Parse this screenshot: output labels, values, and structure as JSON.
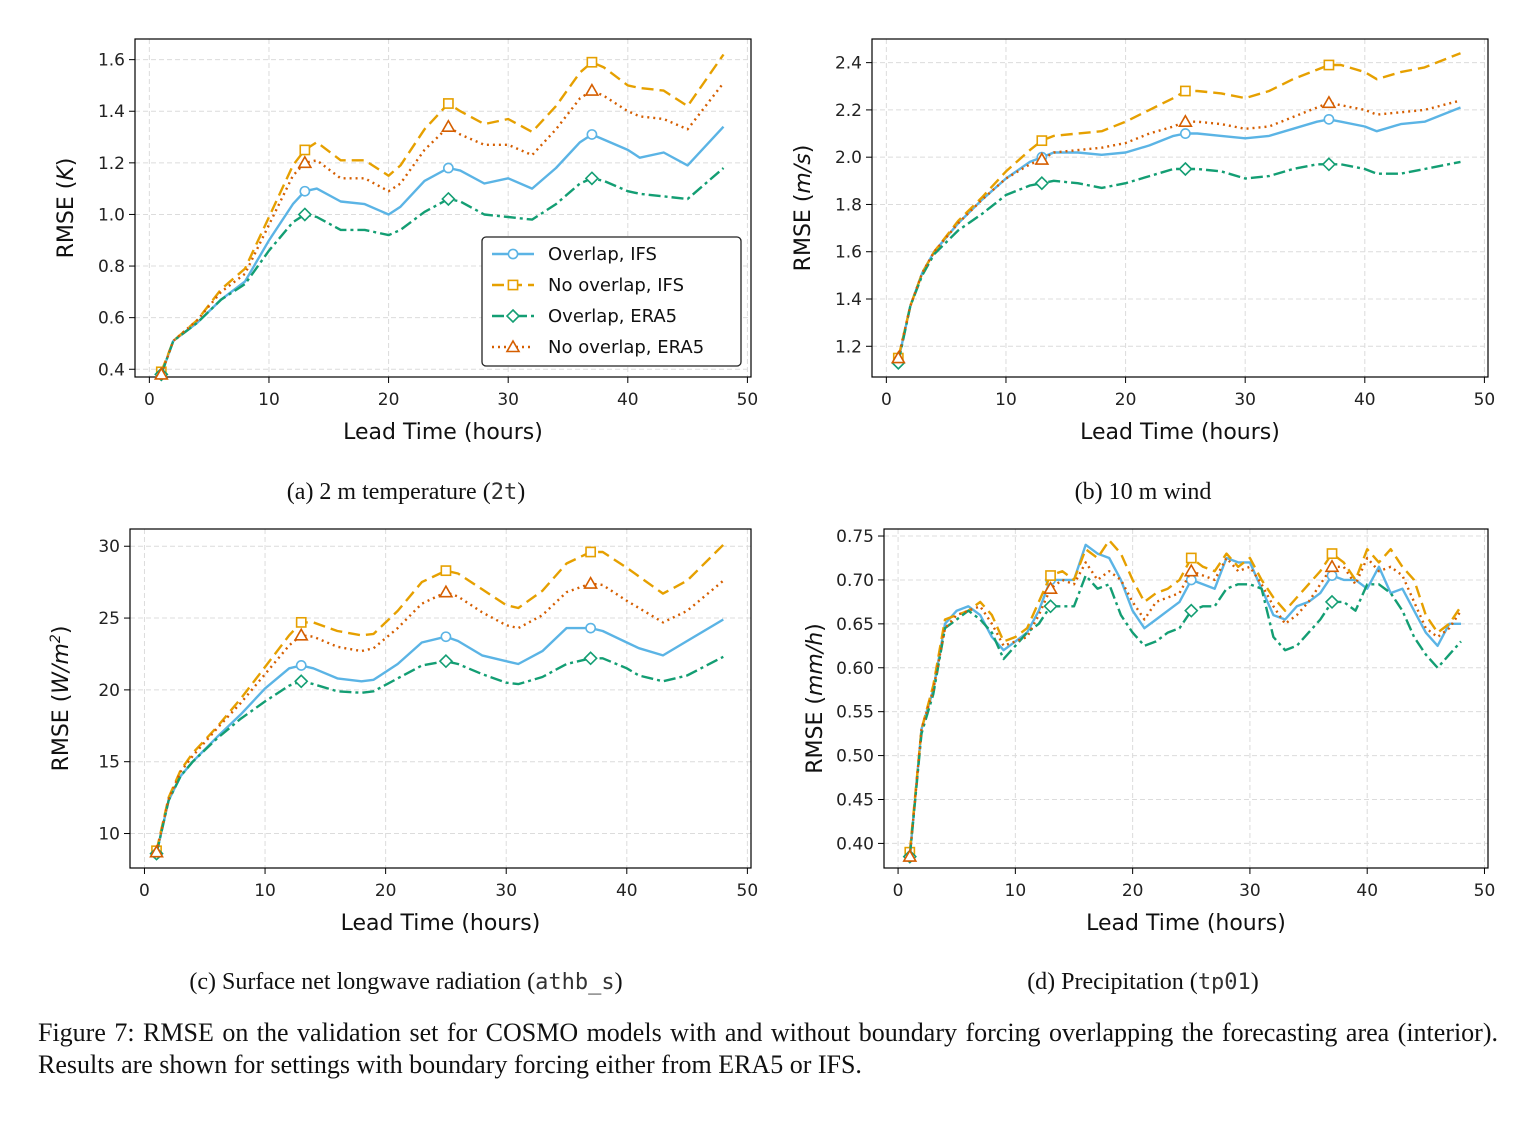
{
  "figure_caption": "Figure 7: RMSE on the validation set for COSMO models with and without boundary forcing overlapping the forecasting area (interior). Results are shown for settings with boundary forcing either from ERA5 or IFS.",
  "series_styles": [
    {
      "name": "Overlap, IFS",
      "color": "#5bb4e5",
      "dash": "",
      "marker": "circle"
    },
    {
      "name": "No overlap, IFS",
      "color": "#e6a000",
      "dash": "12,6",
      "marker": "square"
    },
    {
      "name": "Overlap, ERA5",
      "color": "#139e73",
      "dash": "12,4,3,4",
      "marker": "diamond"
    },
    {
      "name": "No overlap, ERA5",
      "color": "#d55e00",
      "dash": "2,4",
      "marker": "triangle"
    }
  ],
  "marker_x": [
    1,
    13,
    25,
    37
  ],
  "chart_data": [
    {
      "type": "line",
      "caption": {
        "prefix": "(a) 2 m temperature (",
        "code": "2t",
        "suffix": ")"
      },
      "xlabel": "Lead Time (hours)",
      "ylabel": "RMSE (K)",
      "ylabel_parts": {
        "pre": "RMSE (",
        "unit": "K",
        "post": ")"
      },
      "xlim": [
        -1.2,
        50.3
      ],
      "ylim": [
        0.37,
        1.68
      ],
      "xticks": [
        0,
        10,
        20,
        30,
        40,
        50
      ],
      "yticks": [
        0.4,
        0.6,
        0.8,
        1.0,
        1.2,
        1.4,
        1.6
      ],
      "ytick_labels": [
        "0.4",
        "0.6",
        "0.8",
        "1.0",
        "1.2",
        "1.4",
        "1.6"
      ],
      "legend": "lower-right",
      "grid": true,
      "x": [
        1,
        2,
        4,
        6,
        8,
        10,
        12,
        13,
        14,
        16,
        18,
        20,
        21,
        23,
        25,
        26,
        28,
        30,
        32,
        34,
        36,
        37,
        38,
        40,
        41,
        43,
        45,
        48
      ],
      "series": [
        {
          "values": [
            0.38,
            0.51,
            0.58,
            0.67,
            0.74,
            0.9,
            1.04,
            1.09,
            1.1,
            1.05,
            1.04,
            1.0,
            1.03,
            1.13,
            1.18,
            1.17,
            1.12,
            1.14,
            1.1,
            1.18,
            1.28,
            1.31,
            1.29,
            1.25,
            1.22,
            1.24,
            1.19,
            1.34
          ]
        },
        {
          "values": [
            0.39,
            0.51,
            0.59,
            0.71,
            0.79,
            0.99,
            1.19,
            1.25,
            1.28,
            1.21,
            1.21,
            1.15,
            1.19,
            1.33,
            1.43,
            1.4,
            1.35,
            1.37,
            1.32,
            1.42,
            1.55,
            1.59,
            1.57,
            1.5,
            1.49,
            1.48,
            1.42,
            1.62
          ]
        },
        {
          "values": [
            0.38,
            0.51,
            0.58,
            0.67,
            0.73,
            0.86,
            0.97,
            1.0,
            0.99,
            0.94,
            0.94,
            0.92,
            0.94,
            1.01,
            1.06,
            1.05,
            1.0,
            0.99,
            0.98,
            1.04,
            1.12,
            1.14,
            1.13,
            1.09,
            1.08,
            1.07,
            1.06,
            1.18
          ]
        },
        {
          "values": [
            0.38,
            0.51,
            0.59,
            0.7,
            0.77,
            0.96,
            1.15,
            1.2,
            1.21,
            1.14,
            1.14,
            1.09,
            1.12,
            1.25,
            1.34,
            1.31,
            1.27,
            1.27,
            1.23,
            1.33,
            1.45,
            1.48,
            1.46,
            1.4,
            1.38,
            1.37,
            1.33,
            1.51
          ]
        }
      ]
    },
    {
      "type": "line",
      "caption": {
        "prefix": "(b) 10 m wind",
        "code": "",
        "suffix": ""
      },
      "xlabel": "Lead Time (hours)",
      "ylabel": "RMSE (m/s)",
      "ylabel_parts": {
        "pre": "RMSE (",
        "unit": "m/s",
        "post": ")"
      },
      "xlim": [
        -1.2,
        50.3
      ],
      "ylim": [
        1.07,
        2.5
      ],
      "xticks": [
        0,
        10,
        20,
        30,
        40,
        50
      ],
      "yticks": [
        1.2,
        1.4,
        1.6,
        1.8,
        2.0,
        2.2,
        2.4
      ],
      "ytick_labels": [
        "1.2",
        "1.4",
        "1.6",
        "1.8",
        "2.0",
        "2.2",
        "2.4"
      ],
      "legend": "none",
      "grid": true,
      "x": [
        1,
        2,
        3,
        4,
        6,
        8,
        10,
        12,
        13,
        14,
        16,
        18,
        20,
        22,
        24,
        25,
        26,
        28,
        30,
        32,
        34,
        36,
        37,
        38,
        40,
        41,
        43,
        45,
        48
      ],
      "series": [
        {
          "values": [
            1.14,
            1.37,
            1.51,
            1.6,
            1.72,
            1.82,
            1.91,
            1.98,
            2.0,
            2.02,
            2.02,
            2.01,
            2.02,
            2.05,
            2.09,
            2.1,
            2.1,
            2.09,
            2.08,
            2.09,
            2.12,
            2.15,
            2.16,
            2.15,
            2.13,
            2.11,
            2.14,
            2.15,
            2.21
          ]
        },
        {
          "values": [
            1.15,
            1.37,
            1.51,
            1.6,
            1.73,
            1.83,
            1.94,
            2.03,
            2.07,
            2.09,
            2.1,
            2.11,
            2.15,
            2.2,
            2.25,
            2.28,
            2.28,
            2.27,
            2.25,
            2.28,
            2.33,
            2.37,
            2.39,
            2.39,
            2.36,
            2.33,
            2.36,
            2.38,
            2.44
          ]
        },
        {
          "values": [
            1.13,
            1.37,
            1.5,
            1.59,
            1.69,
            1.76,
            1.84,
            1.88,
            1.89,
            1.9,
            1.89,
            1.87,
            1.89,
            1.92,
            1.95,
            1.95,
            1.95,
            1.94,
            1.91,
            1.92,
            1.95,
            1.97,
            1.97,
            1.97,
            1.95,
            1.93,
            1.93,
            1.95,
            1.98
          ]
        },
        {
          "values": [
            1.15,
            1.37,
            1.51,
            1.6,
            1.72,
            1.82,
            1.91,
            1.97,
            1.99,
            2.02,
            2.03,
            2.04,
            2.06,
            2.1,
            2.13,
            2.15,
            2.15,
            2.14,
            2.12,
            2.13,
            2.17,
            2.21,
            2.23,
            2.22,
            2.2,
            2.18,
            2.19,
            2.2,
            2.24
          ]
        }
      ]
    },
    {
      "type": "line",
      "caption": {
        "prefix": "(c) Surface net longwave radiation (",
        "code": "athb_s",
        "suffix": ")"
      },
      "xlabel": "Lead Time (hours)",
      "ylabel": "RMSE (W/m2)",
      "ylabel_parts": {
        "pre": "RMSE (",
        "unit": "W/m",
        "sup": "2",
        "post": ")"
      },
      "xlim": [
        -1.2,
        50.3
      ],
      "ylim": [
        7.6,
        31.2
      ],
      "xticks": [
        0,
        10,
        20,
        30,
        40,
        50
      ],
      "yticks": [
        10,
        15,
        20,
        25,
        30
      ],
      "ytick_labels": [
        "10",
        "15",
        "20",
        "25",
        "30"
      ],
      "legend": "none",
      "grid": true,
      "x": [
        1,
        2,
        3,
        4,
        6,
        8,
        10,
        12,
        13,
        14,
        16,
        18,
        19,
        21,
        23,
        25,
        26,
        28,
        30,
        31,
        33,
        35,
        37,
        38,
        40,
        41,
        43,
        45,
        48
      ],
      "series": [
        {
          "values": [
            8.6,
            12.3,
            14.0,
            15.0,
            16.7,
            18.3,
            20.1,
            21.5,
            21.7,
            21.5,
            20.8,
            20.6,
            20.7,
            21.8,
            23.3,
            23.7,
            23.4,
            22.4,
            22.0,
            21.8,
            22.7,
            24.3,
            24.3,
            24.1,
            23.3,
            22.9,
            22.4,
            23.4,
            24.9
          ]
        },
        {
          "values": [
            8.8,
            12.5,
            14.4,
            15.6,
            17.4,
            19.4,
            21.6,
            23.8,
            24.7,
            24.7,
            24.1,
            23.8,
            23.9,
            25.5,
            27.5,
            28.3,
            28.1,
            27.0,
            25.9,
            25.7,
            26.9,
            28.8,
            29.6,
            29.6,
            28.5,
            27.9,
            26.7,
            27.6,
            30.1
          ]
        },
        {
          "values": [
            8.6,
            12.3,
            14.0,
            15.0,
            16.6,
            18.0,
            19.2,
            20.3,
            20.6,
            20.4,
            19.9,
            19.8,
            19.9,
            20.8,
            21.7,
            22.0,
            21.8,
            21.1,
            20.5,
            20.4,
            20.9,
            21.8,
            22.2,
            22.2,
            21.5,
            21.0,
            20.6,
            21.0,
            22.3
          ]
        },
        {
          "values": [
            8.7,
            12.4,
            14.3,
            15.4,
            17.3,
            19.1,
            21.1,
            23.1,
            23.8,
            23.7,
            23.0,
            22.7,
            22.9,
            24.3,
            26.0,
            26.8,
            26.5,
            25.4,
            24.5,
            24.3,
            25.2,
            26.8,
            27.4,
            27.3,
            26.2,
            25.7,
            24.7,
            25.5,
            27.6
          ]
        }
      ]
    },
    {
      "type": "line",
      "caption": {
        "prefix": "(d) Precipitation (",
        "code": "tp01",
        "suffix": ")"
      },
      "xlabel": "Lead Time (hours)",
      "ylabel": "RMSE (mm/h)",
      "ylabel_parts": {
        "pre": "RMSE (",
        "unit": "mm/h",
        "post": ")"
      },
      "xlim": [
        -1.2,
        50.3
      ],
      "ylim": [
        0.372,
        0.758
      ],
      "xticks": [
        0,
        10,
        20,
        30,
        40,
        50
      ],
      "yticks": [
        0.4,
        0.45,
        0.5,
        0.55,
        0.6,
        0.65,
        0.7,
        0.75
      ],
      "ytick_labels": [
        "0.40",
        "0.45",
        "0.50",
        "0.55",
        "0.60",
        "0.65",
        "0.70",
        "0.75"
      ],
      "legend": "none",
      "grid": true,
      "x": [
        1,
        2,
        3,
        4,
        5,
        6,
        7,
        8,
        9,
        10,
        11,
        12,
        13,
        14,
        15,
        16,
        17,
        18,
        19,
        20,
        21,
        22,
        23,
        24,
        25,
        26,
        27,
        28,
        29,
        30,
        31,
        32,
        33,
        34,
        35,
        36,
        37,
        38,
        39,
        40,
        41,
        42,
        43,
        44,
        45,
        46,
        47,
        48
      ],
      "series": [
        {
          "values": [
            0.385,
            0.53,
            0.575,
            0.65,
            0.665,
            0.67,
            0.66,
            0.635,
            0.62,
            0.63,
            0.64,
            0.665,
            0.7,
            0.7,
            0.7,
            0.74,
            0.73,
            0.725,
            0.7,
            0.665,
            0.645,
            0.655,
            0.665,
            0.675,
            0.7,
            0.695,
            0.69,
            0.725,
            0.72,
            0.72,
            0.69,
            0.66,
            0.655,
            0.67,
            0.675,
            0.685,
            0.705,
            0.7,
            0.7,
            0.69,
            0.715,
            0.685,
            0.69,
            0.665,
            0.64,
            0.625,
            0.65,
            0.65
          ]
        },
        {
          "values": [
            0.39,
            0.53,
            0.58,
            0.655,
            0.66,
            0.665,
            0.675,
            0.66,
            0.63,
            0.635,
            0.645,
            0.675,
            0.705,
            0.71,
            0.7,
            0.735,
            0.725,
            0.745,
            0.73,
            0.7,
            0.675,
            0.685,
            0.69,
            0.7,
            0.725,
            0.715,
            0.71,
            0.73,
            0.715,
            0.725,
            0.7,
            0.68,
            0.665,
            0.68,
            0.695,
            0.71,
            0.73,
            0.72,
            0.7,
            0.735,
            0.72,
            0.735,
            0.715,
            0.7,
            0.66,
            0.64,
            0.65,
            0.67
          ]
        },
        {
          "values": [
            0.385,
            0.525,
            0.57,
            0.645,
            0.655,
            0.665,
            0.655,
            0.64,
            0.61,
            0.625,
            0.64,
            0.65,
            0.67,
            0.67,
            0.67,
            0.705,
            0.69,
            0.695,
            0.66,
            0.64,
            0.625,
            0.63,
            0.64,
            0.645,
            0.665,
            0.67,
            0.67,
            0.69,
            0.695,
            0.695,
            0.69,
            0.635,
            0.62,
            0.625,
            0.64,
            0.655,
            0.675,
            0.675,
            0.665,
            0.695,
            0.695,
            0.685,
            0.665,
            0.635,
            0.615,
            0.6,
            0.615,
            0.63
          ]
        },
        {
          "values": [
            0.385,
            0.53,
            0.575,
            0.645,
            0.66,
            0.665,
            0.67,
            0.65,
            0.625,
            0.63,
            0.635,
            0.66,
            0.69,
            0.7,
            0.695,
            0.72,
            0.7,
            0.71,
            0.7,
            0.675,
            0.655,
            0.675,
            0.68,
            0.685,
            0.71,
            0.705,
            0.7,
            0.725,
            0.71,
            0.715,
            0.695,
            0.67,
            0.65,
            0.66,
            0.675,
            0.695,
            0.715,
            0.715,
            0.695,
            0.725,
            0.71,
            0.715,
            0.705,
            0.675,
            0.645,
            0.635,
            0.645,
            0.665
          ]
        }
      ]
    }
  ]
}
